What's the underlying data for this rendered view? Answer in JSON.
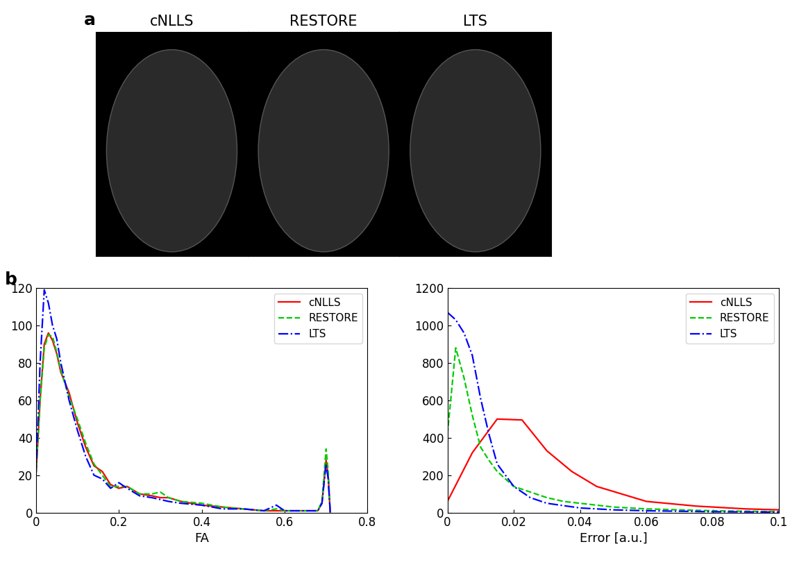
{
  "panel_a": {
    "label": "a",
    "titles": [
      "cNLLS",
      "RESTORE",
      "LTS"
    ]
  },
  "panel_b_label": "b",
  "chart_data": [
    {
      "type": "line",
      "xlabel": "FA",
      "legend": "upper right",
      "xlim": [
        0,
        0.8
      ],
      "xticks": [
        0,
        0.2,
        0.4,
        0.6,
        0.8
      ],
      "ylim": [
        0,
        120
      ],
      "yticks": [
        0,
        20,
        40,
        60,
        80,
        100,
        120
      ],
      "series": [
        {
          "name": "cNLLS",
          "color": "#ff0000",
          "line_style": "solid",
          "x": [
            0,
            0.01,
            0.02,
            0.03,
            0.04,
            0.05,
            0.06,
            0.08,
            0.1,
            0.12,
            0.14,
            0.16,
            0.18,
            0.2,
            0.22,
            0.25,
            0.28,
            0.3,
            0.32,
            0.35,
            0.4,
            0.45,
            0.5,
            0.55,
            0.58,
            0.6,
            0.65,
            0.68,
            0.69,
            0.7,
            0.705,
            0.71
          ],
          "values": [
            20,
            60,
            90,
            96,
            92,
            85,
            75,
            64,
            48,
            35,
            25,
            22,
            15,
            13,
            14,
            10,
            9,
            8,
            8,
            6,
            4,
            3,
            2,
            1,
            1,
            1,
            1,
            1,
            5,
            28,
            20,
            0
          ]
        },
        {
          "name": "RESTORE",
          "color": "#00cc00",
          "line_style": "dashed",
          "x": [
            0,
            0.01,
            0.02,
            0.03,
            0.04,
            0.05,
            0.06,
            0.08,
            0.1,
            0.12,
            0.14,
            0.16,
            0.18,
            0.2,
            0.22,
            0.25,
            0.28,
            0.3,
            0.32,
            0.35,
            0.4,
            0.45,
            0.5,
            0.55,
            0.58,
            0.6,
            0.65,
            0.68,
            0.69,
            0.7,
            0.705,
            0.71
          ],
          "values": [
            20,
            60,
            88,
            95,
            94,
            86,
            76,
            62,
            50,
            37,
            26,
            20,
            14,
            14,
            14,
            10,
            10,
            11,
            8,
            6,
            5,
            3,
            2,
            1,
            2,
            1,
            1,
            1,
            6,
            34,
            22,
            0
          ]
        },
        {
          "name": "LTS",
          "color": "#0000ff",
          "line_style": "dashdot",
          "x": [
            0,
            0.01,
            0.02,
            0.03,
            0.04,
            0.05,
            0.06,
            0.08,
            0.1,
            0.12,
            0.14,
            0.16,
            0.18,
            0.2,
            0.22,
            0.25,
            0.28,
            0.3,
            0.32,
            0.35,
            0.4,
            0.45,
            0.5,
            0.55,
            0.58,
            0.6,
            0.65,
            0.68,
            0.69,
            0.7,
            0.705,
            0.71
          ],
          "values": [
            20,
            80,
            119,
            112,
            100,
            93,
            80,
            60,
            44,
            30,
            20,
            18,
            13,
            16,
            13,
            9,
            8,
            7,
            6,
            5,
            4,
            2,
            2,
            1,
            4,
            1,
            1,
            1,
            5,
            26,
            18,
            0
          ]
        }
      ]
    },
    {
      "type": "line",
      "xlabel": "Error [a.u.]",
      "legend": "upper right",
      "xlim": [
        0,
        0.1
      ],
      "xticks": [
        0,
        0.02,
        0.04,
        0.06,
        0.08,
        0.1
      ],
      "ylim": [
        0,
        1200
      ],
      "yticks": [
        0,
        200,
        400,
        600,
        800,
        1000,
        1200
      ],
      "series": [
        {
          "name": "cNLLS",
          "color": "#ff0000",
          "line_style": "solid",
          "x": [
            0,
            0.0075,
            0.015,
            0.0225,
            0.03,
            0.0375,
            0.045,
            0.06,
            0.075,
            0.09,
            0.1
          ],
          "values": [
            60,
            320,
            500,
            495,
            330,
            220,
            140,
            60,
            35,
            20,
            15
          ]
        },
        {
          "name": "RESTORE",
          "color": "#00cc00",
          "line_style": "dashed",
          "x": [
            0,
            0.0025,
            0.005,
            0.0075,
            0.01,
            0.0125,
            0.015,
            0.02,
            0.025,
            0.03,
            0.035,
            0.04,
            0.05,
            0.06,
            0.07,
            0.08,
            0.1
          ],
          "values": [
            420,
            880,
            720,
            520,
            350,
            280,
            220,
            140,
            110,
            80,
            60,
            50,
            30,
            20,
            15,
            10,
            5
          ]
        },
        {
          "name": "LTS",
          "color": "#0000ff",
          "line_style": "dashdot",
          "x": [
            0,
            0.0025,
            0.005,
            0.0075,
            0.01,
            0.0125,
            0.015,
            0.02,
            0.025,
            0.03,
            0.04,
            0.05,
            0.06,
            0.08,
            0.1
          ],
          "values": [
            1070,
            1030,
            960,
            840,
            610,
            420,
            260,
            140,
            80,
            50,
            25,
            15,
            10,
            5,
            3
          ]
        }
      ]
    }
  ]
}
